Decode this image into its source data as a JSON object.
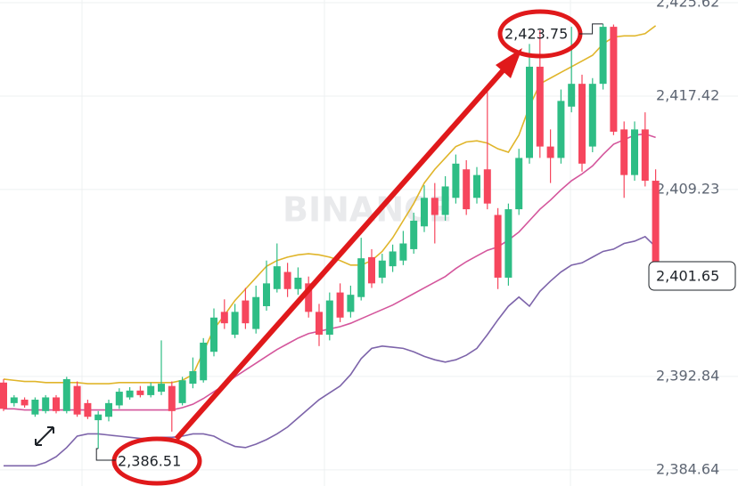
{
  "chart_data": {
    "type": "candlestick",
    "categories": [
      null,
      null,
      null,
      null,
      null,
      null,
      null,
      null,
      null,
      null,
      null,
      null,
      null,
      null,
      null,
      null,
      null,
      null,
      null,
      null,
      null,
      null,
      null,
      null,
      null,
      null,
      null,
      null,
      null,
      null,
      null,
      null,
      null,
      null,
      null,
      null,
      null,
      null,
      null,
      null,
      null,
      null,
      null,
      null,
      null,
      null,
      null,
      null,
      null,
      null,
      null,
      null,
      null,
      null,
      null,
      null,
      null,
      null,
      null,
      null,
      null,
      null,
      null
    ],
    "watermark": "BINANCE",
    "ylim": [
      2383.23,
      2425.85
    ],
    "yticks": [
      {
        "value": 2425.62,
        "label": "2,425.62"
      },
      {
        "value": 2417.42,
        "label": "2,417.42"
      },
      {
        "value": 2409.23,
        "label": "2,409.23"
      },
      {
        "value": 2392.84,
        "label": "2,392.84"
      },
      {
        "value": 2384.64,
        "label": "2,384.64"
      }
    ],
    "grid": true,
    "up_color": "#2ebd85",
    "down_color": "#f6465d",
    "open": [
      2392.3,
      2390.5,
      2390.8,
      2389.5,
      2389.8,
      2391.0,
      2389.8,
      2392.0,
      2390.5,
      2389.0,
      2389.3,
      2390.3,
      2391.0,
      2391.6,
      2391.2,
      2391.5,
      2392.0,
      2390.5,
      2392.2,
      2392.5,
      2395.0,
      2398.5,
      2396.5,
      2399.5,
      2397.0,
      2399.0,
      2400.5,
      2402.0,
      2400.5,
      2401.0,
      2398.5,
      2396.5,
      2400.2,
      2398.5,
      2399.8,
      2403.3,
      2401.5,
      2402.5,
      2403.0,
      2404.0,
      2406.0,
      2408.5,
      2407.0,
      2408.5,
      2411.0,
      2408.5,
      2411.0,
      2407.0,
      2401.5,
      2407.5,
      2412.0,
      2420.0,
      2413.0,
      2412.0,
      2416.5,
      2418.5,
      2413.0,
      2418.5,
      2423.5,
      2414.5,
      2410.5,
      2414.5,
      2410.0
    ],
    "high": [
      2392.6,
      2391.2,
      2391.0,
      2391.0,
      2391.2,
      2391.2,
      2392.8,
      2392.4,
      2390.8,
      2389.8,
      2390.8,
      2391.8,
      2391.9,
      2392.0,
      2392.3,
      2396.0,
      2392.4,
      2392.8,
      2394.5,
      2396.2,
      2398.8,
      2399.6,
      2399.2,
      2400.6,
      2400.8,
      2403.0,
      2404.5,
      2402.8,
      2402.4,
      2401.6,
      2399.2,
      2400.2,
      2401.0,
      2400.8,
      2405.0,
      2404.0,
      2403.6,
      2404.4,
      2405.6,
      2407.2,
      2409.6,
      2409.8,
      2410.4,
      2412.3,
      2411.8,
      2411.2,
      2417.8,
      2407.6,
      2408.0,
      2412.8,
      2422.0,
      2423.2,
      2414.5,
      2418.0,
      2423.5,
      2419.3,
      2419.0,
      2423.75,
      2423.7,
      2415.2,
      2415.2,
      2416.0,
      2411.0
    ],
    "low": [
      2389.8,
      2390.2,
      2390.1,
      2389.3,
      2389.6,
      2389.6,
      2389.6,
      2389.3,
      2389.1,
      2386.51,
      2388.9,
      2390.0,
      2390.8,
      2391.0,
      2391.0,
      2391.2,
      2388.0,
      2390.3,
      2391.8,
      2392.3,
      2394.6,
      2397.0,
      2396.2,
      2397.0,
      2396.6,
      2398.6,
      2400.2,
      2399.8,
      2400.0,
      2398.0,
      2395.5,
      2396.0,
      2397.6,
      2398.0,
      2399.5,
      2400.6,
      2401.0,
      2402.0,
      2402.6,
      2403.6,
      2405.5,
      2404.5,
      2406.5,
      2408.0,
      2407.0,
      2408.0,
      2407.5,
      2400.5,
      2400.8,
      2407.0,
      2411.5,
      2412.0,
      2409.8,
      2411.5,
      2416.0,
      2410.8,
      2412.5,
      2418.0,
      2414.0,
      2408.5,
      2410.0,
      2409.5,
      2401.2
    ],
    "close": [
      2390.0,
      2391.0,
      2390.3,
      2390.8,
      2391.0,
      2389.8,
      2392.6,
      2389.5,
      2389.3,
      2389.5,
      2390.5,
      2391.5,
      2391.6,
      2391.2,
      2392.0,
      2392.2,
      2389.8,
      2392.5,
      2393.3,
      2395.8,
      2398.0,
      2397.5,
      2398.5,
      2397.5,
      2399.8,
      2401.0,
      2402.5,
      2400.5,
      2401.5,
      2398.5,
      2396.5,
      2399.5,
      2398.0,
      2400.0,
      2403.2,
      2401.0,
      2403.0,
      2403.8,
      2404.5,
      2406.5,
      2408.5,
      2407.0,
      2409.5,
      2411.5,
      2407.5,
      2410.5,
      2408.0,
      2401.5,
      2407.5,
      2412.0,
      2420.0,
      2413.0,
      2412.0,
      2417.0,
      2418.5,
      2411.5,
      2418.5,
      2423.5,
      2414.3,
      2410.5,
      2414.5,
      2410.0,
      2401.65
    ],
    "bands": [
      {
        "color": "#e0b52a",
        "values": [
          2392.6,
          2392.5,
          2392.4,
          2392.4,
          2392.3,
          2392.3,
          2392.3,
          2392.3,
          2392.2,
          2392.2,
          2392.2,
          2392.3,
          2392.3,
          2392.3,
          2392.3,
          2392.3,
          2392.3,
          2392.5,
          2393.0,
          2395.0,
          2397.0,
          2398.2,
          2399.5,
          2400.5,
          2401.5,
          2402.5,
          2403.0,
          2403.3,
          2403.5,
          2403.6,
          2403.5,
          2403.3,
          2403.0,
          2402.6,
          2402.6,
          2403.0,
          2403.8,
          2405.0,
          2406.5,
          2408.0,
          2409.8,
          2411.0,
          2412.0,
          2413.0,
          2413.4,
          2413.5,
          2413.3,
          2412.8,
          2412.5,
          2414.0,
          2416.5,
          2418.5,
          2419.0,
          2419.5,
          2420.0,
          2420.5,
          2421.0,
          2422.0,
          2422.6,
          2422.7,
          2422.7,
          2422.9,
          2423.6
        ]
      },
      {
        "color": "#d4569c",
        "values": [
          2390.0,
          2390.0,
          2389.9,
          2389.9,
          2389.9,
          2389.9,
          2389.9,
          2389.9,
          2389.9,
          2389.9,
          2389.9,
          2389.9,
          2389.9,
          2389.9,
          2389.9,
          2389.9,
          2389.9,
          2390.1,
          2390.4,
          2390.9,
          2391.5,
          2392.1,
          2392.8,
          2393.4,
          2394.0,
          2394.6,
          2395.2,
          2395.7,
          2396.2,
          2396.6,
          2396.8,
          2397.0,
          2397.2,
          2397.5,
          2397.9,
          2398.3,
          2398.7,
          2399.1,
          2399.6,
          2400.1,
          2400.6,
          2401.1,
          2401.6,
          2402.3,
          2402.9,
          2403.4,
          2403.9,
          2404.2,
          2404.8,
          2405.5,
          2406.5,
          2407.5,
          2408.3,
          2409.2,
          2410.0,
          2410.6,
          2411.3,
          2412.3,
          2413.2,
          2413.6,
          2414.0,
          2414.1,
          2413.8
        ]
      },
      {
        "color": "#7d64aa",
        "values": [
          2385.0,
          2385.0,
          2385.0,
          2385.0,
          2385.3,
          2385.8,
          2386.6,
          2387.6,
          2387.8,
          2387.8,
          2387.7,
          2387.6,
          2387.5,
          2387.4,
          2387.4,
          2387.5,
          2387.5,
          2387.6,
          2387.8,
          2387.8,
          2387.6,
          2387.1,
          2386.7,
          2386.6,
          2386.9,
          2387.3,
          2387.8,
          2388.4,
          2389.2,
          2390.0,
          2390.8,
          2391.4,
          2392.0,
          2393.0,
          2394.4,
          2395.3,
          2395.5,
          2395.4,
          2395.3,
          2395.0,
          2394.6,
          2394.3,
          2394.1,
          2394.3,
          2394.7,
          2395.3,
          2396.5,
          2397.8,
          2399.0,
          2399.8,
          2399.0,
          2400.3,
          2401.2,
          2402.0,
          2402.6,
          2402.8,
          2403.3,
          2403.8,
          2404.0,
          2404.5,
          2404.7,
          2405.1,
          2404.2
        ]
      }
    ],
    "max_label": {
      "value": 2423.75,
      "label": "2,423.75"
    },
    "min_label": {
      "value": 2386.51,
      "label": "2,386.51"
    },
    "last_price": {
      "value": 2401.65,
      "label": "2,401.65"
    }
  }
}
